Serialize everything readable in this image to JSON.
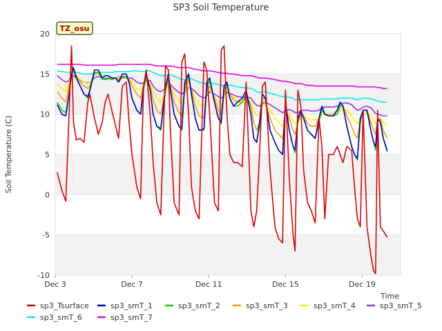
{
  "chart_data": {
    "type": "line",
    "title": "SP3 Soil Temperature",
    "xlabel": "Time",
    "ylabel": "Soil Temperature (C)",
    "badge": "TZ_osu",
    "xlim": [
      0.0,
      18.0
    ],
    "ylim": [
      -10,
      20
    ],
    "grid": "alternating horizontal bands",
    "legend_position": "bottom",
    "x_ticks": [
      {
        "x": 0,
        "label": "Dec 3"
      },
      {
        "x": 4,
        "label": "Dec 7"
      },
      {
        "x": 8,
        "label": "Dec 11"
      },
      {
        "x": 12,
        "label": "Dec 15"
      },
      {
        "x": 16,
        "label": "Dec 19"
      }
    ],
    "y_ticks": [
      {
        "y": -10,
        "label": "-10"
      },
      {
        "y": -5,
        "label": "-5"
      },
      {
        "y": 0,
        "label": "0"
      },
      {
        "y": 5,
        "label": "5"
      },
      {
        "y": 10,
        "label": "10"
      },
      {
        "y": 15,
        "label": "15"
      },
      {
        "y": 20,
        "label": "20"
      }
    ],
    "x": [
      0.1,
      0.35,
      0.55,
      0.72,
      0.85,
      0.95,
      1.1,
      1.3,
      1.5,
      1.7,
      1.8,
      2.05,
      2.25,
      2.45,
      2.6,
      2.75,
      2.95,
      3.15,
      3.3,
      3.5,
      3.7,
      3.85,
      4.0,
      4.25,
      4.45,
      4.6,
      4.75,
      4.95,
      5.1,
      5.3,
      5.5,
      5.75,
      5.9,
      6.0,
      6.2,
      6.45,
      6.6,
      6.75,
      6.95,
      7.1,
      7.3,
      7.5,
      7.75,
      7.9,
      8.05,
      8.3,
      8.5,
      8.65,
      8.8,
      8.95,
      9.1,
      9.3,
      9.5,
      9.75,
      9.95,
      10.2,
      10.35,
      10.5,
      10.65,
      10.8,
      10.95,
      11.2,
      11.45,
      11.65,
      11.85,
      12.0,
      12.2,
      12.4,
      12.5,
      12.65,
      12.8,
      12.95,
      13.15,
      13.35,
      13.55,
      13.75,
      13.9,
      14.05,
      14.25,
      14.5,
      14.7,
      14.85,
      15.0,
      15.2,
      15.45,
      15.6,
      15.75,
      15.9,
      16.05,
      16.25,
      16.45,
      16.6,
      16.7,
      16.8,
      16.95,
      17.1,
      17.3
    ],
    "series": [
      {
        "name": "sp3_Tsurface",
        "color": "#dd0000",
        "values": [
          2.8,
          0.5,
          -0.8,
          10.0,
          18.5,
          9.0,
          6.8,
          7.0,
          6.5,
          11.5,
          12.5,
          9.5,
          7.5,
          9.0,
          11.5,
          12.5,
          10.5,
          8.5,
          7.0,
          13.5,
          14.0,
          9.0,
          5.0,
          1.0,
          -0.5,
          13.5,
          15.5,
          10.0,
          4.0,
          -1.0,
          -2.5,
          16.0,
          15.5,
          8.0,
          -1.0,
          -2.5,
          16.5,
          17.5,
          10.0,
          1.0,
          -2.0,
          -3.0,
          16.5,
          15.5,
          10.0,
          -1.0,
          -2.0,
          18.0,
          18.5,
          10.0,
          5.0,
          4.0,
          4.0,
          3.5,
          14.0,
          -2.0,
          -4.0,
          -2.0,
          5.0,
          13.5,
          14.0,
          3.0,
          -4.0,
          -5.5,
          -6.0,
          13.0,
          2.0,
          -5.0,
          -7.0,
          13.0,
          11.0,
          3.0,
          -1.0,
          -2.0,
          -3.5,
          9.5,
          6.0,
          -3.0,
          5.0,
          5.0,
          6.0,
          5.0,
          4.0,
          6.0,
          5.5,
          1.0,
          -3.0,
          -4.0,
          10.5,
          -4.0,
          -7.5,
          -9.5,
          -9.8,
          10.5,
          -4.0,
          -4.5,
          -5.3
        ]
      },
      {
        "name": "sp3_smT_1",
        "color": "#0000cc",
        "values": [
          11.2,
          10.0,
          9.8,
          12.5,
          15.0,
          15.8,
          14.5,
          13.5,
          12.5,
          12.2,
          13.0,
          15.5,
          15.5,
          14.5,
          14.8,
          14.8,
          14.5,
          14.5,
          14.0,
          15.0,
          15.0,
          14.0,
          12.0,
          10.5,
          10.0,
          13.5,
          15.0,
          13.0,
          10.0,
          8.5,
          8.2,
          13.5,
          15.0,
          13.0,
          10.0,
          8.5,
          8.2,
          14.0,
          15.0,
          12.5,
          9.5,
          8.0,
          8.2,
          14.0,
          14.5,
          11.5,
          9.5,
          9.0,
          13.5,
          14.0,
          12.0,
          11.0,
          11.5,
          12.0,
          13.0,
          10.0,
          7.0,
          6.5,
          9.0,
          12.5,
          12.0,
          8.0,
          6.5,
          5.5,
          5.0,
          11.5,
          8.0,
          6.0,
          5.5,
          9.5,
          10.5,
          9.5,
          8.0,
          7.5,
          7.0,
          9.5,
          11.0,
          10.0,
          9.8,
          9.8,
          10.5,
          11.5,
          11.0,
          8.5,
          6.0,
          5.0,
          4.5,
          9.5,
          10.5,
          10.5,
          8.0,
          6.5,
          6.0,
          9.5,
          9.0,
          7.0,
          5.5
        ]
      },
      {
        "name": "sp3_smT_2",
        "color": "#00dd00",
        "values": [
          11.5,
          10.5,
          10.2,
          12.5,
          14.8,
          15.5,
          14.5,
          13.5,
          12.5,
          12.0,
          12.8,
          15.2,
          15.2,
          14.3,
          14.5,
          14.5,
          14.3,
          14.5,
          14.0,
          14.7,
          14.7,
          14.0,
          12.0,
          10.5,
          10.0,
          13.0,
          14.7,
          13.0,
          10.0,
          8.5,
          8.0,
          13.0,
          14.7,
          13.0,
          10.0,
          8.5,
          8.0,
          13.5,
          14.7,
          12.5,
          9.5,
          8.0,
          8.0,
          13.5,
          14.2,
          11.5,
          9.5,
          8.8,
          13.0,
          14.0,
          12.0,
          11.0,
          11.0,
          11.5,
          12.5,
          10.0,
          7.0,
          6.5,
          8.5,
          12.0,
          12.0,
          8.0,
          6.5,
          5.5,
          5.0,
          11.0,
          8.0,
          6.0,
          5.2,
          9.0,
          10.5,
          9.5,
          8.0,
          7.5,
          7.0,
          9.0,
          10.5,
          10.0,
          9.8,
          9.8,
          10.0,
          11.0,
          11.0,
          8.5,
          6.0,
          5.0,
          4.3,
          9.0,
          10.5,
          10.5,
          8.0,
          6.5,
          5.5,
          9.5,
          9.0,
          7.0,
          5.3
        ]
      },
      {
        "name": "sp3_smT_3",
        "color": "#ff9900",
        "values": [
          12.8,
          12.0,
          11.5,
          13.5,
          14.8,
          15.5,
          14.8,
          14.0,
          13.5,
          13.2,
          13.5,
          15.0,
          15.2,
          14.5,
          14.5,
          14.5,
          14.5,
          14.5,
          14.3,
          14.5,
          14.5,
          14.3,
          13.5,
          12.5,
          12.0,
          13.5,
          14.3,
          13.5,
          11.8,
          10.5,
          10.0,
          13.0,
          14.3,
          13.5,
          11.5,
          10.2,
          9.8,
          13.0,
          14.2,
          13.0,
          11.0,
          9.8,
          9.5,
          12.8,
          13.5,
          12.0,
          10.5,
          10.0,
          12.5,
          13.5,
          12.5,
          11.8,
          11.5,
          11.5,
          12.5,
          11.0,
          9.0,
          8.0,
          9.0,
          11.5,
          11.5,
          9.5,
          8.0,
          7.5,
          7.0,
          10.5,
          9.5,
          8.0,
          7.5,
          9.0,
          10.0,
          9.8,
          8.8,
          8.5,
          8.5,
          9.5,
          10.5,
          10.0,
          10.0,
          10.0,
          10.5,
          11.0,
          11.0,
          9.8,
          8.5,
          7.5,
          7.0,
          9.5,
          10.5,
          10.5,
          9.0,
          8.0,
          7.5,
          9.0,
          9.5,
          8.0,
          7.0
        ]
      },
      {
        "name": "sp3_smT_4",
        "color": "#ffee00",
        "values": [
          13.8,
          13.2,
          12.8,
          14.0,
          14.8,
          15.2,
          14.8,
          14.3,
          14.0,
          13.8,
          14.0,
          14.8,
          15.0,
          14.5,
          14.5,
          14.5,
          14.5,
          14.5,
          14.5,
          14.5,
          14.5,
          14.4,
          14.0,
          13.2,
          13.0,
          13.5,
          14.2,
          13.8,
          12.8,
          12.0,
          11.5,
          12.8,
          13.8,
          13.5,
          12.5,
          11.8,
          11.2,
          12.5,
          13.5,
          13.0,
          12.0,
          11.2,
          11.0,
          12.5,
          13.0,
          12.2,
          11.5,
          11.0,
          12.0,
          13.0,
          12.5,
          12.0,
          11.8,
          11.8,
          12.0,
          11.5,
          10.5,
          9.8,
          10.0,
          11.0,
          11.2,
          10.5,
          9.5,
          9.0,
          8.5,
          10.0,
          10.0,
          9.2,
          8.8,
          9.0,
          9.5,
          9.8,
          9.5,
          9.3,
          9.3,
          9.5,
          10.0,
          10.0,
          10.0,
          10.0,
          10.3,
          10.5,
          10.8,
          10.5,
          9.8,
          9.2,
          8.8,
          9.5,
          10.0,
          10.2,
          9.8,
          9.2,
          8.8,
          9.2,
          9.5,
          9.0,
          8.5
        ]
      },
      {
        "name": "sp3_smT_5",
        "color": "#9933dd",
        "values": [
          14.8,
          14.3,
          14.0,
          14.2,
          14.8,
          14.8,
          14.5,
          14.2,
          14.0,
          13.9,
          14.0,
          14.5,
          14.7,
          14.5,
          14.3,
          14.4,
          14.4,
          14.5,
          14.6,
          14.6,
          14.5,
          14.5,
          14.5,
          14.0,
          13.8,
          13.9,
          14.2,
          14.2,
          13.5,
          13.0,
          12.8,
          13.2,
          13.7,
          13.7,
          13.2,
          12.7,
          12.5,
          12.8,
          13.3,
          13.2,
          12.8,
          12.3,
          12.0,
          12.3,
          12.8,
          12.5,
          12.2,
          12.0,
          12.3,
          12.7,
          12.6,
          12.4,
          12.2,
          12.1,
          12.2,
          12.0,
          11.5,
          11.1,
          11.0,
          11.3,
          11.5,
          11.2,
          10.8,
          10.5,
          10.2,
          10.4,
          10.6,
          10.4,
          10.2,
          10.2,
          10.4,
          10.5,
          10.5,
          10.4,
          10.4,
          10.5,
          10.8,
          10.9,
          10.9,
          10.9,
          11.0,
          11.2,
          11.4,
          11.4,
          11.2,
          10.8,
          10.5,
          10.6,
          10.9,
          11.0,
          10.8,
          10.4,
          10.1,
          10.0,
          9.9,
          9.8,
          9.8
        ]
      },
      {
        "name": "sp3_smT_6",
        "color": "#00eeee",
        "values": [
          15.4,
          15.3,
          15.2,
          15.2,
          15.3,
          15.4,
          15.2,
          15.1,
          15.0,
          15.0,
          15.0,
          15.1,
          15.2,
          15.2,
          15.2,
          15.2,
          15.2,
          15.3,
          15.3,
          15.3,
          15.3,
          15.3,
          15.4,
          15.4,
          15.3,
          15.3,
          15.4,
          15.4,
          15.2,
          15.0,
          14.8,
          14.8,
          14.9,
          14.9,
          14.7,
          14.5,
          14.3,
          14.3,
          14.5,
          14.4,
          14.2,
          14.0,
          13.8,
          13.8,
          13.9,
          13.8,
          13.7,
          13.6,
          13.6,
          13.7,
          13.6,
          13.5,
          13.4,
          13.3,
          13.3,
          13.2,
          13.0,
          12.8,
          12.7,
          12.8,
          12.8,
          12.6,
          12.5,
          12.3,
          12.2,
          12.2,
          12.1,
          12.0,
          11.8,
          11.8,
          11.8,
          11.8,
          11.8,
          11.8,
          11.8,
          11.8,
          11.9,
          11.9,
          11.9,
          11.9,
          11.9,
          12.0,
          12.0,
          12.0,
          12.0,
          11.9,
          11.8,
          11.9,
          12.0,
          12.0,
          11.9,
          11.8,
          11.7,
          11.6,
          11.6,
          11.5,
          11.5
        ]
      },
      {
        "name": "sp3_smT_7",
        "color": "#ee00ee",
        "values": [
          16.2,
          16.2,
          16.2,
          16.2,
          16.2,
          16.2,
          16.2,
          16.2,
          16.1,
          16.1,
          16.1,
          16.1,
          16.1,
          16.1,
          16.1,
          16.1,
          16.1,
          16.1,
          16.2,
          16.2,
          16.2,
          16.2,
          16.2,
          16.2,
          16.2,
          16.2,
          16.2,
          16.2,
          16.1,
          16.0,
          16.0,
          16.0,
          16.0,
          16.0,
          15.9,
          15.8,
          15.8,
          15.8,
          15.8,
          15.7,
          15.6,
          15.5,
          15.4,
          15.4,
          15.4,
          15.3,
          15.2,
          15.1,
          15.1,
          15.1,
          15.0,
          15.0,
          14.9,
          14.8,
          14.8,
          14.8,
          14.7,
          14.6,
          14.5,
          14.5,
          14.5,
          14.4,
          14.3,
          14.2,
          14.1,
          14.1,
          14.0,
          13.9,
          13.8,
          13.8,
          13.8,
          13.7,
          13.6,
          13.6,
          13.5,
          13.5,
          13.5,
          13.5,
          13.5,
          13.5,
          13.5,
          13.5,
          13.5,
          13.5,
          13.5,
          13.5,
          13.4,
          13.4,
          13.4,
          13.4,
          13.4,
          13.4,
          13.4,
          13.3,
          13.3,
          13.2,
          13.2
        ]
      }
    ]
  }
}
